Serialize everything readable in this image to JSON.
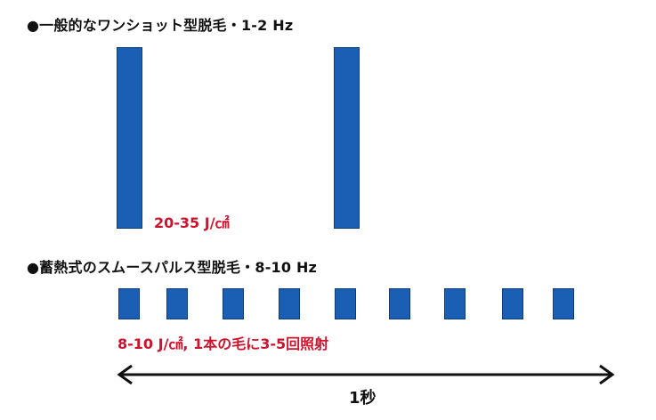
{
  "section_1": {
    "heading": "●一般的なワンショット型脱毛・1-2 Hz",
    "energy_note": "20-35 J/㎠",
    "pulse_count": 2
  },
  "section_2": {
    "heading": "●蓄熱式のスムースパルス型脱毛・8-10 Hz",
    "energy_note": "8-10 J/㎠, 1本の毛に3-5回照射",
    "pulse_count": 9
  },
  "time_axis": {
    "label": "1秒"
  },
  "colors": {
    "pulse_fill": "#1b5fb5",
    "pulse_border": "#0d3a7a",
    "note_text": "#d0122c",
    "heading_text": "#111111"
  }
}
